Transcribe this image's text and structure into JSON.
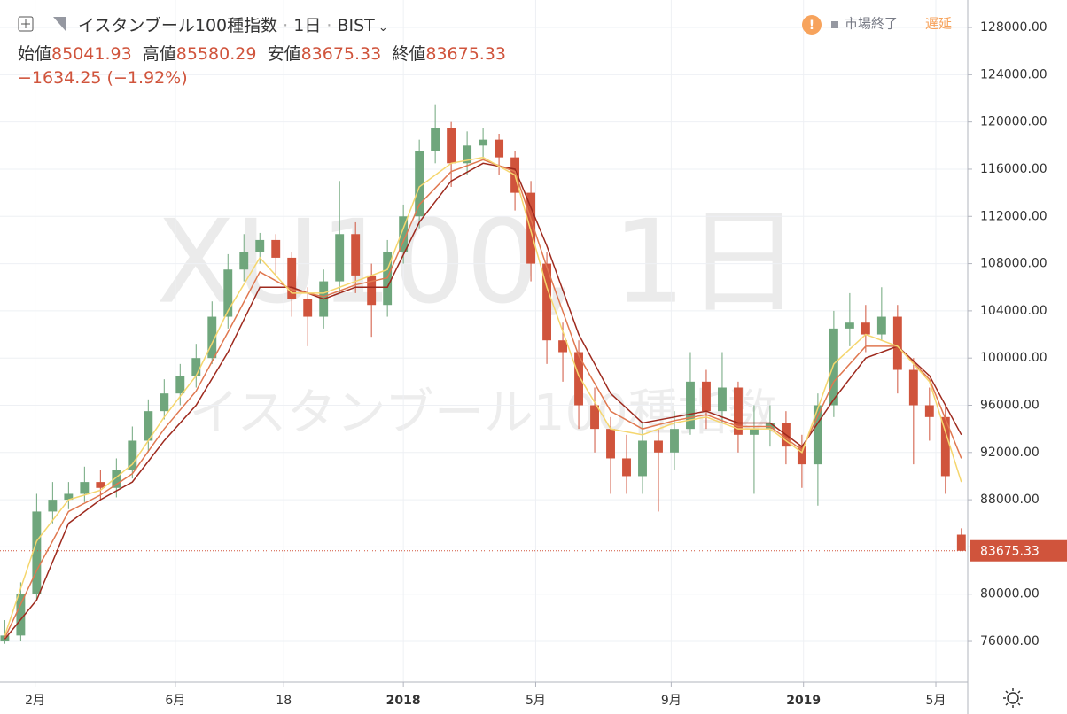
{
  "header": {
    "symbol_name": "イスタンブール100種指数",
    "interval": "1日",
    "exchange": "BIST",
    "open_label": "始値",
    "open": 85041.93,
    "high_label": "高値",
    "high": 85580.29,
    "low_label": "安値",
    "low": 83675.33,
    "close_label": "終値",
    "close": 83675.33,
    "change": "−1634.25 (−1.92%)"
  },
  "status": {
    "market": "市場終了",
    "delay": "遅延"
  },
  "watermark": {
    "main": "XU100, 1日",
    "sub": "イスタンブール100種指数"
  },
  "chart_data": {
    "type": "candlestick",
    "up_color": "#6fa67c",
    "down_color": "#d0543c",
    "x": [
      0,
      10,
      20,
      30,
      40,
      50,
      60,
      70,
      80,
      90,
      100,
      110,
      120,
      130,
      140,
      150,
      160,
      170,
      180,
      190,
      200,
      210,
      220,
      230,
      240,
      250,
      260,
      270,
      280,
      290,
      300,
      310,
      320,
      330,
      340,
      350,
      360,
      370,
      380,
      390,
      400,
      410,
      420,
      430,
      440,
      450,
      460,
      470,
      480,
      490,
      500,
      510,
      520,
      530,
      540,
      550,
      560,
      570,
      580,
      590,
      600
    ],
    "open": [
      76000,
      76500,
      80000,
      87000,
      88000,
      88500,
      89500,
      89000,
      90500,
      93000,
      95500,
      97000,
      98500,
      100000,
      103500,
      107500,
      109000,
      110000,
      108500,
      105000,
      103500,
      106500,
      110500,
      107000,
      104500,
      109000,
      112000,
      117500,
      119500,
      116500,
      118000,
      118500,
      117000,
      114000,
      108000,
      101500,
      100500,
      96000,
      94000,
      91500,
      90000,
      93000,
      92000,
      94000,
      98000,
      95500,
      97500,
      93500,
      94000,
      94500,
      92500,
      91000,
      96000,
      102500,
      103000,
      102000,
      103500,
      99000,
      96000,
      95000,
      85041.93
    ],
    "high": [
      77800,
      81000,
      88500,
      89500,
      89500,
      90800,
      90500,
      91500,
      94200,
      96500,
      98200,
      99500,
      101200,
      104800,
      108800,
      110500,
      110600,
      110500,
      109000,
      106000,
      107500,
      115000,
      111500,
      108000,
      110000,
      113000,
      118500,
      121500,
      120000,
      119200,
      119500,
      119000,
      117500,
      115000,
      109000,
      103000,
      101500,
      97500,
      95000,
      93500,
      94500,
      94000,
      95500,
      100500,
      99000,
      100500,
      98000,
      96000,
      96000,
      95500,
      93500,
      97000,
      104000,
      105500,
      104500,
      106000,
      104500,
      100000,
      97500,
      96000,
      85580.29
    ],
    "low": [
      75800,
      76000,
      79500,
      86000,
      87200,
      87800,
      88000,
      88200,
      89800,
      92000,
      94800,
      96000,
      97500,
      99500,
      102500,
      106500,
      108000,
      107000,
      103500,
      101000,
      102500,
      105500,
      105500,
      101800,
      103500,
      108000,
      111000,
      116500,
      114500,
      115500,
      116800,
      115500,
      112500,
      106500,
      99500,
      98000,
      94000,
      92000,
      88500,
      88500,
      88500,
      87000,
      90500,
      93500,
      94000,
      94500,
      92000,
      88500,
      92500,
      91000,
      89000,
      87500,
      95000,
      101000,
      100500,
      101500,
      97000,
      91000,
      93000,
      88500,
      83675.33
    ],
    "close": [
      76500,
      80000,
      87000,
      88000,
      88500,
      89500,
      89000,
      90500,
      93000,
      95500,
      97000,
      98500,
      100000,
      103500,
      107500,
      109000,
      110000,
      108500,
      105000,
      103500,
      106500,
      110500,
      107000,
      104500,
      109000,
      112000,
      117500,
      119500,
      116500,
      118000,
      118500,
      117000,
      114000,
      108000,
      101500,
      100500,
      96000,
      94000,
      91500,
      90000,
      93000,
      92000,
      94000,
      98000,
      95500,
      97500,
      93500,
      94000,
      94500,
      92500,
      91000,
      96000,
      102500,
      103000,
      102000,
      103500,
      99000,
      96000,
      95000,
      90000,
      83675.33
    ],
    "ribbon_x": [
      0,
      20,
      40,
      60,
      80,
      100,
      120,
      140,
      160,
      180,
      200,
      220,
      240,
      260,
      280,
      300,
      320,
      340,
      360,
      380,
      400,
      420,
      440,
      460,
      480,
      500,
      520,
      540,
      560,
      580,
      600
    ],
    "ribbon": [
      {
        "color": "#9e2a1e",
        "values": [
          76200,
          79500,
          86000,
          88000,
          89500,
          93000,
          96000,
          100500,
          106000,
          106000,
          105000,
          106000,
          106000,
          111500,
          115000,
          116500,
          116000,
          109500,
          102000,
          97000,
          94500,
          95000,
          95500,
          94500,
          94500,
          92500,
          96500,
          100000,
          101000,
          98500,
          93500
        ]
      },
      {
        "color": "#e07850",
        "values": [
          76300,
          82000,
          87000,
          88400,
          90200,
          94000,
          97200,
          102200,
          107300,
          105800,
          105200,
          106200,
          106800,
          113000,
          115800,
          116800,
          115800,
          107700,
          100200,
          95500,
          94000,
          94700,
          95200,
          94200,
          94200,
          92200,
          98000,
          101000,
          101000,
          98200,
          91500
        ]
      },
      {
        "color": "#f5d66e",
        "values": [
          76500,
          84500,
          88000,
          88800,
          91000,
          95000,
          98500,
          104000,
          108500,
          105500,
          105500,
          106500,
          107500,
          114500,
          116500,
          117000,
          115500,
          106000,
          98500,
          94000,
          93500,
          94500,
          95000,
          94000,
          94000,
          92000,
          99500,
          102000,
          101000,
          98000,
          89500
        ]
      }
    ],
    "last_price": 83675.33,
    "last_color": "#d0543c",
    "xlim": [
      -3,
      604
    ],
    "ylim": [
      72550,
      130330
    ],
    "xticks": [
      {
        "value": 19,
        "label": "2月"
      },
      {
        "value": 107,
        "label": "6月"
      },
      {
        "value": 175,
        "label": "18"
      },
      {
        "value": 250,
        "label": "2018"
      },
      {
        "value": 333,
        "label": "5月"
      },
      {
        "value": 418,
        "label": "9月"
      },
      {
        "value": 501,
        "label": "2019"
      },
      {
        "value": 584,
        "label": "5月"
      }
    ],
    "yticks": [
      {
        "value": 76000,
        "label": "76000.00"
      },
      {
        "value": 80000,
        "label": "80000.00"
      },
      {
        "value": 84000,
        "label": "84000.00"
      },
      {
        "value": 88000,
        "label": "88000.00"
      },
      {
        "value": 92000,
        "label": "92000.00"
      },
      {
        "value": 96000,
        "label": "96000.00"
      },
      {
        "value": 100000,
        "label": "100000.00"
      },
      {
        "value": 104000,
        "label": "104000.00"
      },
      {
        "value": 108000,
        "label": "108000.00"
      },
      {
        "value": 112000,
        "label": "112000.00"
      },
      {
        "value": 116000,
        "label": "116000.00"
      },
      {
        "value": 120000,
        "label": "120000.00"
      },
      {
        "value": 124000,
        "label": "124000.00"
      },
      {
        "value": 128000,
        "label": "128000.00"
      }
    ],
    "grid": true
  }
}
